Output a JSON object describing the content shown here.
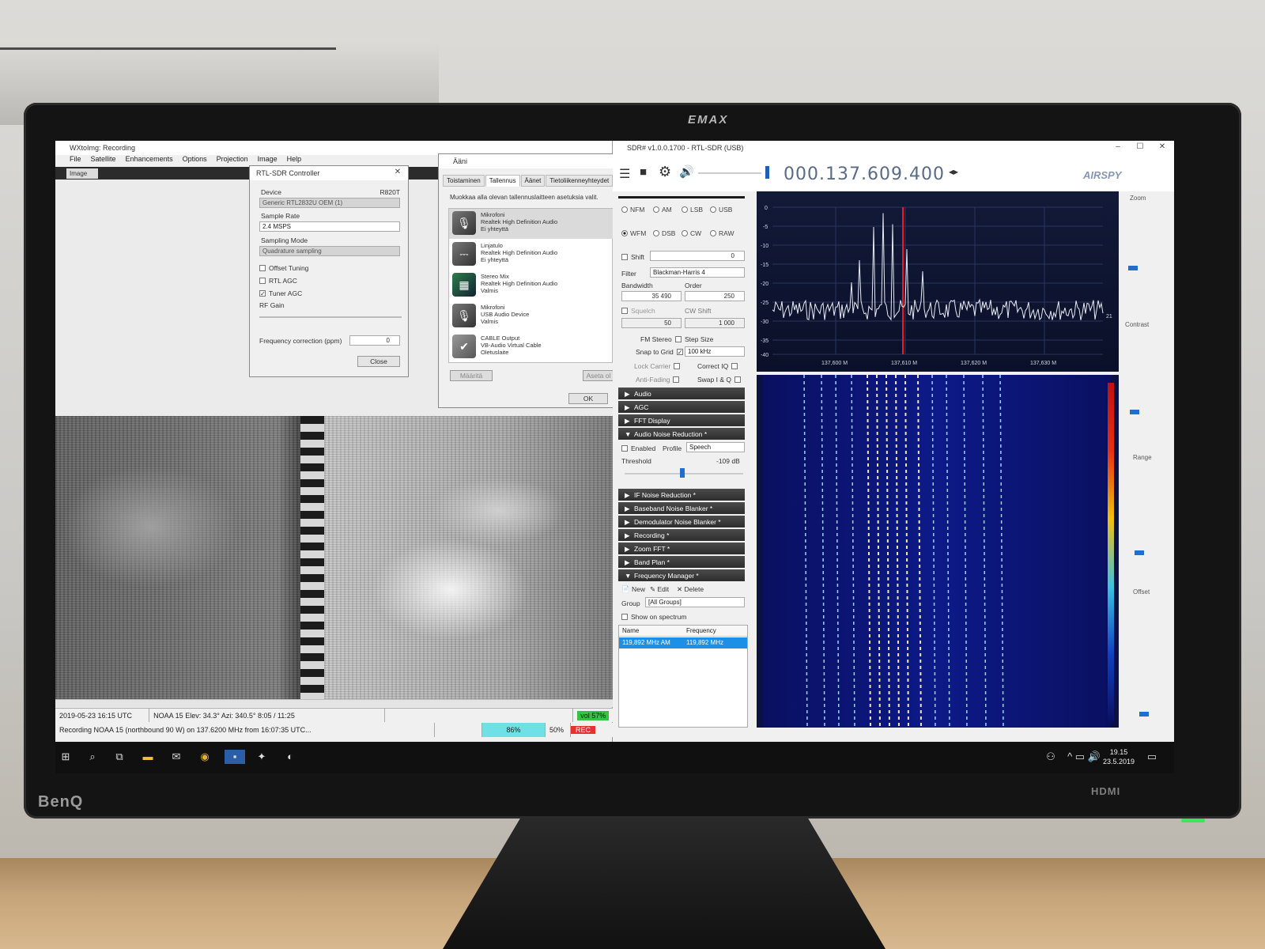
{
  "monitor": {
    "brand_top": "EMAX",
    "brand_bottom": "BenQ",
    "hdmi": "HDMI"
  },
  "wxtoimg": {
    "title": "WXtoImg: Recording",
    "menu": [
      "File",
      "Satellite",
      "Enhancements",
      "Options",
      "Projection",
      "Image",
      "Help"
    ],
    "tab": "Image",
    "status1": {
      "datetime": "2019-05-23  16:15 UTC",
      "pass": "NOAA 15   Elev: 34.3°   Azi: 340.5°   8:05 / 11:25",
      "vol": "vol 57%"
    },
    "status2": {
      "recording": "Recording NOAA 15 (northbound 90 W) on 137.6200 MHz from 16:07:35 UTC...",
      "pct1": "86%",
      "pct2": "50%",
      "rec": "REC"
    }
  },
  "rtl": {
    "title": "RTL-SDR Controller",
    "device_label": "Device",
    "device_chip": "R820T",
    "device_value": "Generic RTL2832U OEM (1)",
    "sample_rate_label": "Sample Rate",
    "sample_rate_value": "2.4 MSPS",
    "sampling_mode_label": "Sampling Mode",
    "sampling_mode_value": "Quadrature sampling",
    "offset_tuning": "Offset Tuning",
    "rtl_agc": "RTL AGC",
    "tuner_agc": "Tuner AGC",
    "rf_gain": "RF Gain",
    "freq_corr_label": "Frequency correction (ppm)",
    "freq_corr_value": "0",
    "close": "Close"
  },
  "aani": {
    "title": "Ääni",
    "tabs": [
      "Toistaminen",
      "Tallennus",
      "Äänet",
      "Tietoliikenneyhteydet"
    ],
    "instruction": "Muokkaa alla olevan tallennuslaitteen asetuksia valit.",
    "devices": [
      {
        "name": "Mikrofoni",
        "desc": "Realtek High Definition Audio",
        "state": "Ei yhteyttä"
      },
      {
        "name": "Linjatulo",
        "desc": "Realtek High Definition Audio",
        "state": "Ei yhteyttä"
      },
      {
        "name": "Stereo Mix",
        "desc": "Realtek High Definition Audio",
        "state": "Valmis"
      },
      {
        "name": "Mikrofoni",
        "desc": "USB Audio Device",
        "state": "Valmis"
      },
      {
        "name": "CABLE Output",
        "desc": "VB-Audio Virtual Cable",
        "state": "Oletuslaite"
      }
    ],
    "configure": "Määritä",
    "set_default": "Aseta ol",
    "ok": "OK"
  },
  "sdr": {
    "title": "SDR# v1.0.0.1700 - RTL-SDR (USB)",
    "frequency": "000.137.609.400",
    "brand": "AIRSPY",
    "modes_row1": [
      "NFM",
      "AM",
      "LSB",
      "USB"
    ],
    "modes_row2": [
      "WFM",
      "DSB",
      "CW",
      "RAW"
    ],
    "selected_mode": "WFM",
    "shift_label": "Shift",
    "shift_value": "0",
    "filter_label": "Filter",
    "filter_value": "Blackman-Harris 4",
    "bandwidth_label": "Bandwidth",
    "bandwidth_value": "35 490",
    "order_label": "Order",
    "order_value": "250",
    "squelch_label": "Squelch",
    "squelch_value": "50",
    "cw_shift_label": "CW Shift",
    "cw_shift_value": "1 000",
    "fm_stereo": "FM Stereo",
    "step_size_label": "Step Size",
    "snap_to_grid": "Snap to Grid",
    "step_value": "100 kHz",
    "lock_carrier": "Lock Carrier",
    "correct_iq": "Correct IQ",
    "anti_fading": "Anti-Fading",
    "swap_iq": "Swap I & Q",
    "sections_top": [
      "Audio",
      "AGC",
      "FFT Display",
      "Audio Noise Reduction *"
    ],
    "anr": {
      "enabled": "Enabled",
      "profile_label": "Profile",
      "profile_value": "Speech",
      "threshold_label": "Threshold",
      "threshold_value": "-109 dB"
    },
    "sections_bottom": [
      "IF Noise Reduction *",
      "Baseband Noise Blanker *",
      "Demodulator Noise Blanker *",
      "Recording *",
      "Zoom FFT *",
      "Band Plan *",
      "Frequency Manager *"
    ],
    "fm": {
      "new": "New",
      "edit": "Edit",
      "delete": "Delete",
      "group_label": "Group",
      "group_value": "[All Groups]",
      "show_on_spectrum": "Show on spectrum",
      "col_name": "Name",
      "col_freq": "Frequency",
      "row_name": "119,892 MHz AM",
      "row_freq": "119,892 MHz"
    },
    "spectrum": {
      "y_ticks": [
        "0",
        "-5",
        "-10",
        "-15",
        "-20",
        "-25",
        "-30",
        "-35",
        "-40"
      ],
      "x_ticks": [
        "137,600 M",
        "137,610 M",
        "137,620 M",
        "137,630 M"
      ],
      "side_value": "21"
    },
    "side": {
      "zoom": "Zoom",
      "contrast": "Contrast",
      "range": "Range",
      "offset": "Offset"
    }
  },
  "taskbar": {
    "time": "19.15",
    "date": "23.5.2019"
  }
}
